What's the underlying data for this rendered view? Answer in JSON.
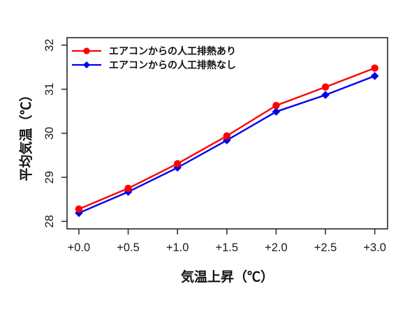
{
  "page": {
    "background": "#ffffff",
    "axis_color": "#333333",
    "text_color": "#111111"
  },
  "chart_data": {
    "type": "line",
    "title": "",
    "xlabel": "気温上昇（℃）",
    "ylabel": "平均気温（℃）",
    "x_values": [
      0.0,
      0.5,
      1.0,
      1.5,
      2.0,
      2.5,
      3.0
    ],
    "x_tick_labels": [
      "+0.0",
      "+0.5",
      "+1.0",
      "+1.5",
      "+2.0",
      "+2.5",
      "+3.0"
    ],
    "y_ticks": [
      28,
      29,
      30,
      31,
      32
    ],
    "y_tick_labels": [
      "28",
      "29",
      "30",
      "31",
      "32"
    ],
    "xlim": [
      -0.12,
      3.13
    ],
    "ylim": [
      27.83,
      32.17
    ],
    "grid": false,
    "legend_position": "top-left",
    "series": [
      {
        "name": "エアコンからの人工排熱あり",
        "color": "#ff0000",
        "marker": "circle",
        "values": [
          28.28,
          28.75,
          29.31,
          29.94,
          30.63,
          31.05,
          31.48
        ]
      },
      {
        "name": "エアコンからの人工排熱なし",
        "color": "#0000f0",
        "marker": "diamond",
        "values": [
          28.19,
          28.67,
          29.22,
          29.84,
          30.49,
          30.87,
          31.3
        ]
      }
    ]
  }
}
